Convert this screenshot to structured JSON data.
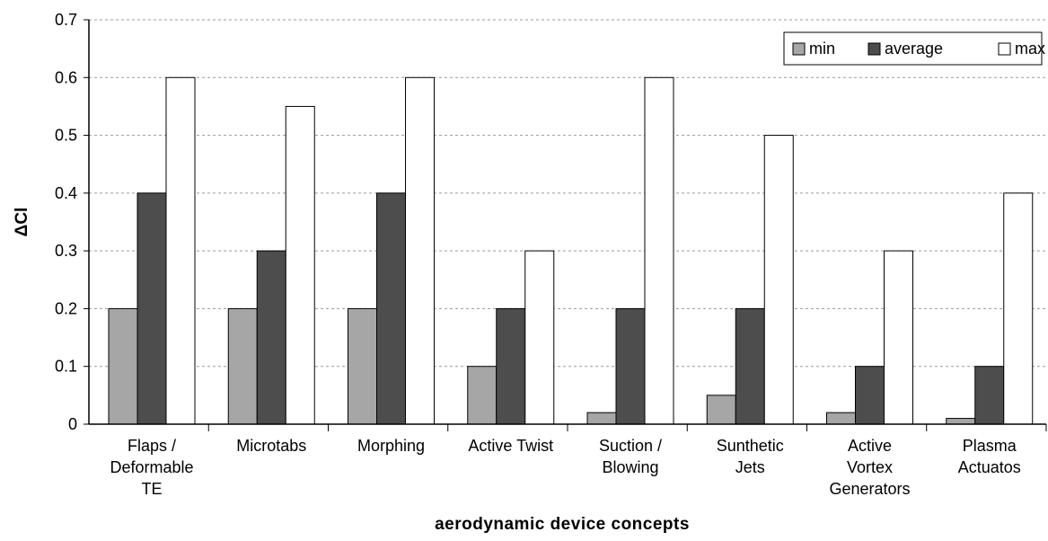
{
  "chart_data": {
    "type": "bar",
    "title": "",
    "xlabel": "aerodynamic device concepts",
    "ylabel": "ΔCl",
    "ylim": [
      0,
      0.7
    ],
    "yticks": [
      "0",
      "0.1",
      "0.2",
      "0.3",
      "0.4",
      "0.5",
      "0.6",
      "0.7"
    ],
    "grid": true,
    "legend_position": "top-right",
    "categories": [
      [
        "Flaps /",
        "Deformable",
        "TE"
      ],
      [
        "Microtabs"
      ],
      [
        "Morphing"
      ],
      [
        "Active Twist"
      ],
      [
        "Suction /",
        "Blowing"
      ],
      [
        "Sunthetic",
        "Jets"
      ],
      [
        "Active",
        "Vortex",
        "Generators"
      ],
      [
        "Plasma",
        "Actuatos"
      ]
    ],
    "series": [
      {
        "name": "min",
        "color": "#a6a6a6",
        "values": [
          0.2,
          0.2,
          0.2,
          0.1,
          0.02,
          0.05,
          0.02,
          0.01
        ]
      },
      {
        "name": "average",
        "color": "#4d4d4d",
        "values": [
          0.4,
          0.3,
          0.4,
          0.2,
          0.2,
          0.2,
          0.1,
          0.1
        ]
      },
      {
        "name": "max",
        "color": "#ffffff",
        "values": [
          0.6,
          0.55,
          0.6,
          0.3,
          0.6,
          0.5,
          0.3,
          0.4
        ]
      }
    ]
  }
}
